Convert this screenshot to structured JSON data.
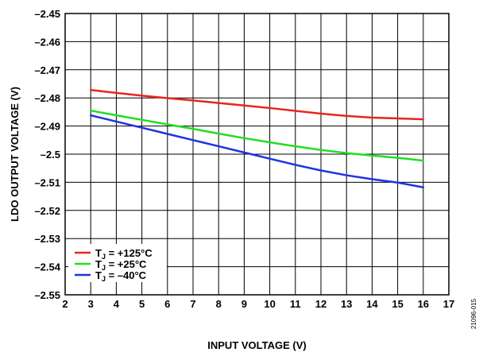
{
  "chart_data": {
    "type": "line",
    "title": "",
    "xlabel": "INPUT VOLTAGE (V)",
    "ylabel": "LDO OUTPUT VOLTAGE (V)",
    "xlim": [
      2,
      17
    ],
    "ylim": [
      -2.55,
      -2.45
    ],
    "xticks": [
      2,
      3,
      4,
      5,
      6,
      7,
      8,
      9,
      10,
      11,
      12,
      13,
      14,
      15,
      16,
      17
    ],
    "yticks": [
      -2.45,
      -2.46,
      -2.47,
      -2.48,
      -2.49,
      -2.5,
      -2.51,
      -2.52,
      -2.53,
      -2.54,
      -2.55
    ],
    "ytick_labels": [
      "–2.45",
      "–2.46",
      "–2.47",
      "–2.48",
      "–2.49",
      "–2.5",
      "–2.51",
      "–2.52",
      "–2.53",
      "–2.54",
      "–2.55"
    ],
    "grid": true,
    "legend_position": "bottom-left",
    "x": [
      3,
      4,
      5,
      6,
      7,
      8,
      9,
      10,
      11,
      12,
      13,
      14,
      15,
      16
    ],
    "series": [
      {
        "name_prefix": "T",
        "name_sub": "J",
        "name_suffix": " = +125°C",
        "color": "#e8261c",
        "values": [
          -2.4772,
          -2.4782,
          -2.4792,
          -2.4801,
          -2.4809,
          -2.4818,
          -2.4827,
          -2.4836,
          -2.4846,
          -2.4856,
          -2.4864,
          -2.487,
          -2.4873,
          -2.4876
        ]
      },
      {
        "name_prefix": "T",
        "name_sub": "J",
        "name_suffix": " = +25°C",
        "color": "#22dd22",
        "values": [
          -2.4845,
          -2.4862,
          -2.4878,
          -2.4894,
          -2.491,
          -2.4927,
          -2.4943,
          -2.4958,
          -2.4972,
          -2.4985,
          -2.4996,
          -2.5005,
          -2.5013,
          -2.5023
        ]
      },
      {
        "name_prefix": "T",
        "name_sub": "J",
        "name_suffix": " = –40°C",
        "color": "#1e33e0",
        "values": [
          -2.4862,
          -2.4884,
          -2.4906,
          -2.4928,
          -2.495,
          -2.4972,
          -2.4994,
          -2.5016,
          -2.5038,
          -2.5058,
          -2.5075,
          -2.5089,
          -2.5101,
          -2.5118
        ]
      }
    ],
    "figure_id": "21096-015"
  }
}
